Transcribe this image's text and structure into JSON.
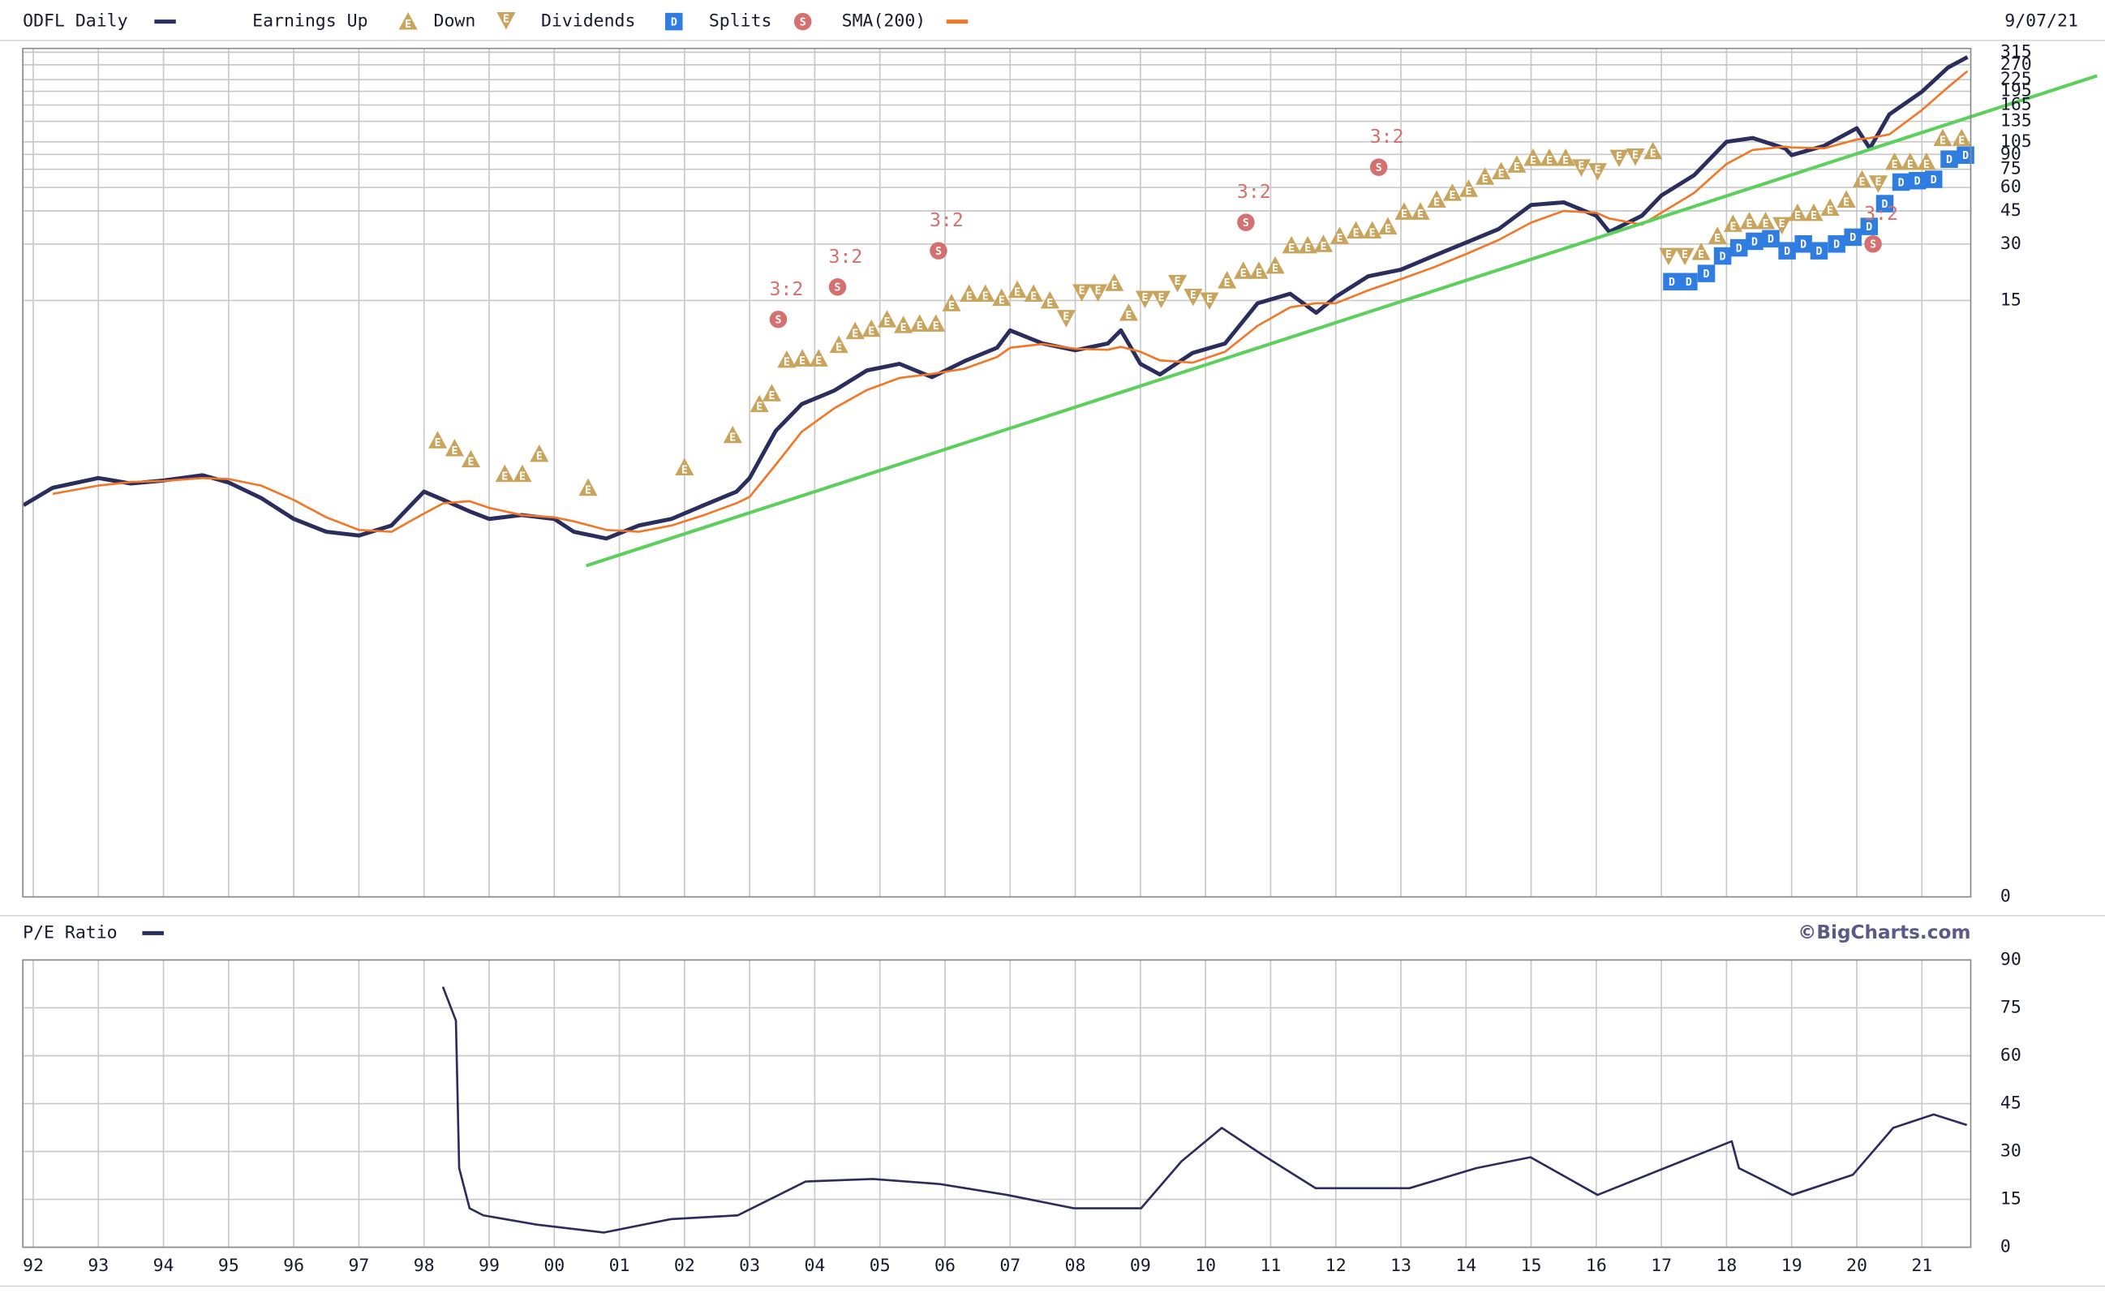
{
  "chart_data": [
    {
      "type": "line",
      "scale": "log",
      "date_label": "9/07/21",
      "grid": true,
      "xlim": [
        1991.84,
        2021.75
      ],
      "ylim": [
        0.01,
        330
      ],
      "yticks": [
        315,
        270,
        225,
        195,
        165,
        135,
        105,
        90,
        75,
        60,
        45,
        30,
        15,
        {
          "value": 0.01,
          "label": "0"
        }
      ],
      "x": [
        1991.85,
        1992.3,
        1993.0,
        1993.5,
        1994.0,
        1994.6,
        1995.0,
        1995.5,
        1996.0,
        1996.5,
        1997.0,
        1997.5,
        1998.0,
        1998.3,
        1998.7,
        1999.0,
        1999.5,
        2000.0,
        2000.3,
        2000.8,
        2001.3,
        2001.8,
        2002.3,
        2002.8,
        2003.0,
        2003.4,
        2003.8,
        2004.3,
        2004.8,
        2005.3,
        2005.8,
        2006.3,
        2006.8,
        2007.0,
        2007.5,
        2008.0,
        2008.5,
        2008.7,
        2009.0,
        2009.3,
        2009.8,
        2010.3,
        2010.8,
        2011.3,
        2011.7,
        2012.0,
        2012.5,
        2013.0,
        2013.5,
        2014.0,
        2014.5,
        2015.0,
        2015.5,
        2016.0,
        2016.2,
        2016.7,
        2017.0,
        2017.5,
        2018.0,
        2018.4,
        2018.9,
        2019.0,
        2019.5,
        2020.0,
        2020.2,
        2020.5,
        2021.0,
        2021.4,
        2021.7
      ],
      "series": [
        {
          "name": "ODFL Daily",
          "color": "#2b2d5c",
          "values": [
            1.22,
            1.51,
            1.7,
            1.59,
            1.65,
            1.76,
            1.61,
            1.33,
            1.03,
            0.88,
            0.84,
            0.95,
            1.44,
            1.3,
            1.13,
            1.03,
            1.08,
            1.03,
            0.88,
            0.81,
            0.95,
            1.03,
            1.22,
            1.44,
            1.7,
            3.03,
            4.21,
            4.97,
            6.36,
            6.9,
            5.86,
            7.13,
            8.41,
            10.4,
            8.85,
            8.15,
            8.85,
            10.4,
            6.9,
            6.05,
            7.88,
            8.85,
            14.5,
            16.3,
            12.9,
            15.7,
            20.2,
            21.9,
            25.9,
            30.5,
            36.0,
            48.4,
            50.0,
            42.4,
            34.8,
            42.4,
            54.4,
            69.6,
            105,
            110,
            96.8,
            89.2,
            100,
            124,
            96.8,
            147,
            194,
            261,
            297
          ]
        },
        {
          "name": "SMA(200)",
          "color": "#f07828",
          "values": [
            null,
            1.4,
            1.55,
            1.62,
            1.64,
            1.7,
            1.68,
            1.55,
            1.3,
            1.05,
            0.9,
            0.88,
            1.1,
            1.25,
            1.28,
            1.18,
            1.08,
            1.05,
            1.0,
            0.9,
            0.88,
            0.95,
            1.08,
            1.25,
            1.35,
            2.0,
            3.0,
            4.0,
            5.0,
            5.8,
            6.1,
            6.5,
            7.5,
            8.4,
            8.8,
            8.3,
            8.2,
            8.5,
            8.0,
            7.2,
            7.0,
            8.0,
            11.0,
            13.8,
            14.5,
            14.5,
            17.0,
            19.5,
            22.5,
            26.5,
            31.5,
            39,
            45,
            44,
            41,
            38,
            44,
            56,
            80,
            95,
            99,
            98,
            97,
            108,
            110,
            115,
            155,
            205,
            250
          ]
        }
      ],
      "earnings_up": {
        "name": "Earnings Up",
        "color": "#c9a45c",
        "letter": "E",
        "x": [
          1998.21,
          1998.47,
          1998.72,
          1999.24,
          1999.51,
          1999.77,
          2000.52,
          2002.0,
          2002.74,
          2003.15,
          2003.34,
          2003.57,
          2003.81,
          2004.06,
          2004.37,
          2004.62,
          2004.87,
          2005.11,
          2005.36,
          2005.61,
          2005.86,
          2006.1,
          2006.37,
          2006.62,
          2006.87,
          2007.11,
          2007.36,
          2007.61,
          2008.6,
          2008.82,
          2010.33,
          2010.58,
          2010.82,
          2011.07,
          2011.32,
          2011.57,
          2011.81,
          2012.06,
          2012.31,
          2012.56,
          2012.8,
          2013.05,
          2013.3,
          2013.55,
          2013.79,
          2014.04,
          2014.29,
          2014.54,
          2014.78,
          2015.03,
          2015.28,
          2015.53,
          2016.87,
          2017.61,
          2017.86,
          2018.1,
          2018.35,
          2018.6,
          2019.09,
          2019.34,
          2019.59,
          2019.84,
          2020.08,
          2020.58,
          2020.82,
          2021.07,
          2021.32,
          2021.61
        ],
        "values": [
          2.7,
          2.45,
          2.14,
          1.79,
          1.79,
          2.29,
          1.51,
          1.94,
          2.88,
          4.21,
          4.81,
          7.26,
          7.37,
          7.37,
          8.7,
          10.3,
          10.6,
          11.9,
          11.1,
          11.3,
          11.3,
          14.5,
          16.3,
          16.3,
          15.5,
          17.1,
          16.3,
          15,
          18.6,
          12.9,
          19.2,
          21.6,
          21.6,
          23.0,
          29.5,
          29.5,
          30,
          33.1,
          35.4,
          35.4,
          37.2,
          44.6,
          44.6,
          51.7,
          56.2,
          59.0,
          68.5,
          73.2,
          79.4,
          86.3,
          86.3,
          86.3,
          93.7,
          27.2,
          33.1,
          38.4,
          39.7,
          39.7,
          43.9,
          43.9,
          46.8,
          51.7,
          66.3,
          82.1,
          82.1,
          82.1,
          110,
          110
        ]
      },
      "earnings_down": {
        "name": "Down",
        "color": "#c9a45c",
        "letter": "E",
        "x": [
          2007.86,
          2008.1,
          2008.35,
          2009.07,
          2009.32,
          2009.57,
          2009.81,
          2010.06,
          2015.77,
          2016.02,
          2016.35,
          2016.6,
          2017.11,
          2017.36,
          2018.85,
          2020.33
        ],
        "values": [
          12.1,
          16.6,
          16.6,
          15.3,
          15.3,
          18.6,
          15.7,
          15,
          76.8,
          73.2,
          86.3,
          87.7,
          25.9,
          25.9,
          37.8,
          63.0
        ]
      },
      "dividends": {
        "name": "Dividends",
        "color": "#2f7de1",
        "letter": "D",
        "x": [
          2017.16,
          2017.42,
          2017.69,
          2017.94,
          2018.19,
          2018.43,
          2018.68,
          2018.93,
          2019.18,
          2019.42,
          2019.69,
          2019.94,
          2020.19,
          2020.43,
          2020.68,
          2020.93,
          2021.18,
          2021.42,
          2021.67
        ],
        "values": [
          18.9,
          18.9,
          20.9,
          25.9,
          28.6,
          31.0,
          32.0,
          27.6,
          30,
          27.6,
          30,
          32.6,
          37.2,
          49.2,
          64.1,
          65.2,
          66.3,
          84.9,
          89.2
        ]
      },
      "splits": {
        "name": "Splits",
        "color": "#d47070",
        "letter": "S",
        "x": [
          2003.44,
          2004.35,
          2005.9,
          2010.62,
          2012.66,
          2020.25
        ],
        "values": [
          11.9,
          17.7,
          27.6,
          39.1,
          76.9,
          30.0
        ],
        "labels": [
          "3:2",
          "3:2",
          "3:2",
          "3:2",
          "3:2",
          "3:2"
        ]
      },
      "trendline": {
        "color": "#5ccf5c",
        "x": [
          2000.49,
          2023.69
        ],
        "values": [
          0.58,
          236
        ]
      }
    },
    {
      "type": "line",
      "credit": "©BigCharts.com",
      "grid": true,
      "xlim": [
        1991.84,
        2021.75
      ],
      "ylim": [
        0,
        90
      ],
      "yticks": [
        90,
        75,
        60,
        45,
        30,
        15,
        0
      ],
      "xticks": [
        {
          "value": 1992,
          "label": "92"
        },
        {
          "value": 1993,
          "label": "93"
        },
        {
          "value": 1994,
          "label": "94"
        },
        {
          "value": 1995,
          "label": "95"
        },
        {
          "value": 1996,
          "label": "96"
        },
        {
          "value": 1997,
          "label": "97"
        },
        {
          "value": 1998,
          "label": "98"
        },
        {
          "value": 1999,
          "label": "99"
        },
        {
          "value": 2000,
          "label": "00"
        },
        {
          "value": 2001,
          "label": "01"
        },
        {
          "value": 2002,
          "label": "02"
        },
        {
          "value": 2003,
          "label": "03"
        },
        {
          "value": 2004,
          "label": "04"
        },
        {
          "value": 2005,
          "label": "05"
        },
        {
          "value": 2006,
          "label": "06"
        },
        {
          "value": 2007,
          "label": "07"
        },
        {
          "value": 2008,
          "label": "08"
        },
        {
          "value": 2009,
          "label": "09"
        },
        {
          "value": 2010,
          "label": "10"
        },
        {
          "value": 2011,
          "label": "11"
        },
        {
          "value": 2012,
          "label": "12"
        },
        {
          "value": 2013,
          "label": "13"
        },
        {
          "value": 2014,
          "label": "14"
        },
        {
          "value": 2015,
          "label": "15"
        },
        {
          "value": 2016,
          "label": "16"
        },
        {
          "value": 2017,
          "label": "17"
        },
        {
          "value": 2018,
          "label": "18"
        },
        {
          "value": 2019,
          "label": "19"
        },
        {
          "value": 2020,
          "label": "20"
        },
        {
          "value": 2021,
          "label": "21"
        }
      ],
      "x": [
        1998.29,
        1998.49,
        1998.54,
        1998.7,
        1998.91,
        1999.73,
        2000.76,
        2001.79,
        2002.82,
        2003.86,
        2004.89,
        2005.92,
        2006.95,
        2007.98,
        2009.01,
        2009.63,
        2010.25,
        2010.87,
        2011.69,
        2013.13,
        2014.16,
        2014.99,
        2016.02,
        2017.05,
        2018.08,
        2018.19,
        2019.01,
        2019.94,
        2020.56,
        2021.18,
        2021.69
      ],
      "series": [
        {
          "name": "P/E Ratio",
          "color": "#2b2d5c",
          "values": [
            81.6,
            71,
            24.8,
            12.2,
            10,
            7.1,
            4.6,
            8.8,
            10,
            20.6,
            21.4,
            19.8,
            16.4,
            12.2,
            12.2,
            26.9,
            37.4,
            29,
            18.5,
            18.5,
            24.8,
            28.2,
            16.4,
            24.8,
            33.2,
            24.8,
            16.4,
            22.7,
            37.4,
            41.6,
            38.3
          ]
        }
      ]
    }
  ]
}
